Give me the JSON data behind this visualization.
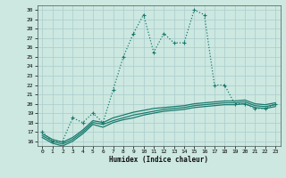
{
  "xlabel": "Humidex (Indice chaleur)",
  "ylabel": "",
  "background_color": "#cce8e0",
  "grid_color": "#aacccc",
  "line_color": "#1a7a6e",
  "xlim": [
    -0.5,
    23.5
  ],
  "ylim": [
    15.5,
    30.5
  ],
  "xticks": [
    0,
    1,
    2,
    3,
    4,
    5,
    6,
    7,
    8,
    9,
    10,
    11,
    12,
    13,
    14,
    15,
    16,
    17,
    18,
    19,
    20,
    21,
    22,
    23
  ],
  "yticks": [
    16,
    17,
    18,
    19,
    20,
    21,
    22,
    23,
    24,
    25,
    26,
    27,
    28,
    29,
    30
  ],
  "series": [
    {
      "x": [
        0,
        1,
        2,
        3,
        4,
        5,
        6,
        7,
        8,
        9,
        10,
        11,
        12,
        13,
        14,
        15,
        16,
        17,
        18,
        19,
        20,
        21,
        22,
        23
      ],
      "y": [
        17.0,
        16.0,
        16.0,
        18.5,
        18.0,
        19.0,
        18.0,
        21.5,
        25.0,
        27.5,
        29.5,
        25.5,
        27.5,
        26.5,
        26.5,
        30.0,
        29.5,
        22.0,
        22.0,
        20.0,
        20.0,
        19.5,
        19.5,
        20.0
      ],
      "style": "dotted",
      "marker": "+"
    },
    {
      "x": [
        0,
        1,
        2,
        3,
        4,
        5,
        6,
        7,
        8,
        9,
        10,
        11,
        12,
        13,
        14,
        15,
        16,
        17,
        18,
        19,
        20,
        21,
        22,
        23
      ],
      "y": [
        16.8,
        16.2,
        15.9,
        16.4,
        17.2,
        18.2,
        18.0,
        18.5,
        18.8,
        19.1,
        19.3,
        19.5,
        19.6,
        19.7,
        19.8,
        20.0,
        20.1,
        20.2,
        20.3,
        20.3,
        20.4,
        20.0,
        19.9,
        20.1
      ],
      "style": "solid",
      "marker": null
    },
    {
      "x": [
        0,
        1,
        2,
        3,
        4,
        5,
        6,
        7,
        8,
        9,
        10,
        11,
        12,
        13,
        14,
        15,
        16,
        17,
        18,
        19,
        20,
        21,
        22,
        23
      ],
      "y": [
        16.6,
        16.0,
        15.7,
        16.2,
        17.0,
        18.0,
        17.8,
        18.2,
        18.5,
        18.8,
        19.0,
        19.2,
        19.4,
        19.5,
        19.6,
        19.8,
        19.9,
        20.0,
        20.1,
        20.1,
        20.2,
        19.8,
        19.7,
        19.9
      ],
      "style": "solid",
      "marker": null
    },
    {
      "x": [
        0,
        1,
        2,
        3,
        4,
        5,
        6,
        7,
        8,
        9,
        10,
        11,
        12,
        13,
        14,
        15,
        16,
        17,
        18,
        19,
        20,
        21,
        22,
        23
      ],
      "y": [
        16.4,
        15.8,
        15.5,
        16.0,
        16.8,
        17.8,
        17.5,
        18.0,
        18.3,
        18.5,
        18.8,
        19.0,
        19.2,
        19.3,
        19.4,
        19.6,
        19.7,
        19.8,
        19.9,
        19.9,
        20.0,
        19.6,
        19.5,
        19.7
      ],
      "style": "solid",
      "marker": null
    }
  ]
}
